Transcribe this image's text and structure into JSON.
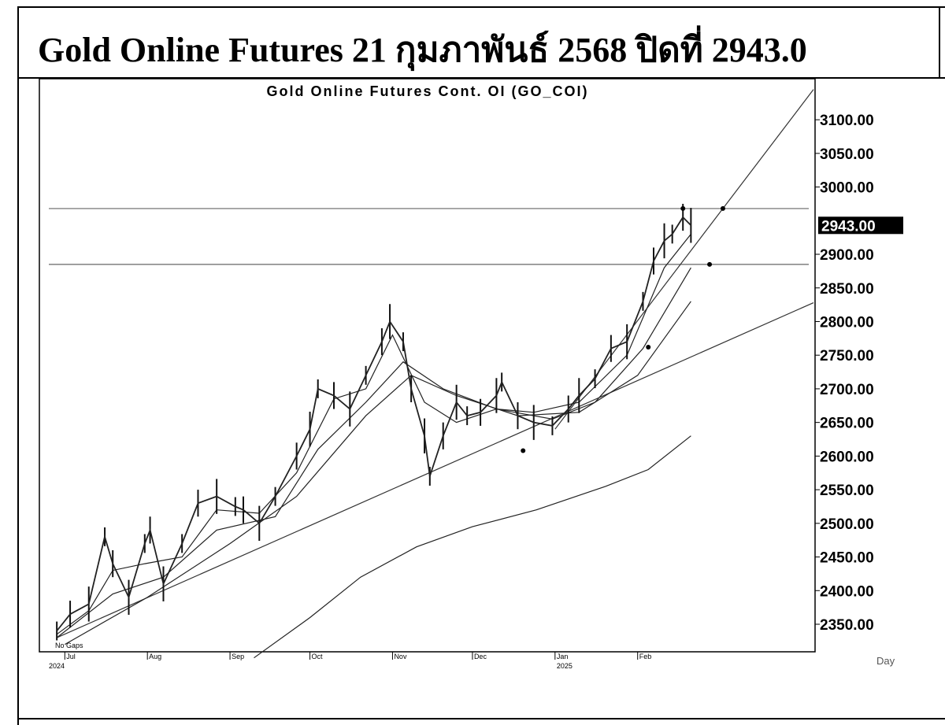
{
  "header": {
    "title": "Gold Online Futures 21 กุมภาพันธ์ 2568 ปิดที่ 2943.0"
  },
  "chart_data": {
    "type": "line",
    "title": "Gold Online Futures Cont. OI (GO_COI)",
    "xlabel": "",
    "ylabel": "",
    "ylim": [
      2300,
      3140
    ],
    "y_ticks": [
      "3100.00",
      "3050.00",
      "3000.00",
      "2900.00",
      "2850.00",
      "2800.00",
      "2750.00",
      "2700.00",
      "2650.00",
      "2600.00",
      "2550.00",
      "2500.00",
      "2450.00",
      "2400.00",
      "2350.00"
    ],
    "last_price_label": "2943.00",
    "last_price": 2943.0,
    "period_label": "Day",
    "gaps_label": "No Gaps",
    "x_months": [
      "Jul",
      "Aug",
      "Sep",
      "Oct",
      "Nov",
      "Dec",
      "Jan",
      "Feb"
    ],
    "x_years": [
      "2024",
      "2025"
    ],
    "horizontal_levels": [
      2968,
      2885
    ],
    "price_close": [
      {
        "d": "2024-06-28",
        "v": 2340
      },
      {
        "d": "2024-07-03",
        "v": 2365
      },
      {
        "d": "2024-07-10",
        "v": 2380
      },
      {
        "d": "2024-07-16",
        "v": 2480
      },
      {
        "d": "2024-07-19",
        "v": 2440
      },
      {
        "d": "2024-07-25",
        "v": 2390
      },
      {
        "d": "2024-07-31",
        "v": 2470
      },
      {
        "d": "2024-08-02",
        "v": 2490
      },
      {
        "d": "2024-08-07",
        "v": 2410
      },
      {
        "d": "2024-08-14",
        "v": 2470
      },
      {
        "d": "2024-08-20",
        "v": 2530
      },
      {
        "d": "2024-08-27",
        "v": 2540
      },
      {
        "d": "2024-09-03",
        "v": 2525
      },
      {
        "d": "2024-09-06",
        "v": 2520
      },
      {
        "d": "2024-09-12",
        "v": 2500
      },
      {
        "d": "2024-09-18",
        "v": 2540
      },
      {
        "d": "2024-09-26",
        "v": 2600
      },
      {
        "d": "2024-10-01",
        "v": 2640
      },
      {
        "d": "2024-10-04",
        "v": 2700
      },
      {
        "d": "2024-10-10",
        "v": 2690
      },
      {
        "d": "2024-10-16",
        "v": 2670
      },
      {
        "d": "2024-10-22",
        "v": 2720
      },
      {
        "d": "2024-10-28",
        "v": 2770
      },
      {
        "d": "2024-10-31",
        "v": 2800
      },
      {
        "d": "2024-11-05",
        "v": 2770
      },
      {
        "d": "2024-11-08",
        "v": 2700
      },
      {
        "d": "2024-11-13",
        "v": 2630
      },
      {
        "d": "2024-11-15",
        "v": 2570
      },
      {
        "d": "2024-11-20",
        "v": 2630
      },
      {
        "d": "2024-11-25",
        "v": 2680
      },
      {
        "d": "2024-11-29",
        "v": 2660
      },
      {
        "d": "2024-12-04",
        "v": 2665
      },
      {
        "d": "2024-12-10",
        "v": 2690
      },
      {
        "d": "2024-12-12",
        "v": 2710
      },
      {
        "d": "2024-12-18",
        "v": 2660
      },
      {
        "d": "2024-12-24",
        "v": 2650
      },
      {
        "d": "2024-12-31",
        "v": 2645
      },
      {
        "d": "2025-01-06",
        "v": 2670
      },
      {
        "d": "2025-01-10",
        "v": 2690
      },
      {
        "d": "2025-01-16",
        "v": 2715
      },
      {
        "d": "2025-01-22",
        "v": 2760
      },
      {
        "d": "2025-01-28",
        "v": 2770
      },
      {
        "d": "2025-02-03",
        "v": 2830
      },
      {
        "d": "2025-02-07",
        "v": 2890
      },
      {
        "d": "2025-02-11",
        "v": 2920
      },
      {
        "d": "2025-02-14",
        "v": 2930
      },
      {
        "d": "2025-02-18",
        "v": 2955
      },
      {
        "d": "2025-02-21",
        "v": 2943
      }
    ],
    "ma_fast": [
      {
        "d": "2024-06-28",
        "v": 2335
      },
      {
        "d": "2024-07-10",
        "v": 2370
      },
      {
        "d": "2024-07-19",
        "v": 2430
      },
      {
        "d": "2024-07-31",
        "v": 2440
      },
      {
        "d": "2024-08-14",
        "v": 2450
      },
      {
        "d": "2024-08-27",
        "v": 2520
      },
      {
        "d": "2024-09-12",
        "v": 2515
      },
      {
        "d": "2024-09-26",
        "v": 2575
      },
      {
        "d": "2024-10-10",
        "v": 2685
      },
      {
        "d": "2024-10-22",
        "v": 2700
      },
      {
        "d": "2024-11-01",
        "v": 2780
      },
      {
        "d": "2024-11-13",
        "v": 2680
      },
      {
        "d": "2024-11-25",
        "v": 2650
      },
      {
        "d": "2024-12-10",
        "v": 2670
      },
      {
        "d": "2024-12-24",
        "v": 2665
      },
      {
        "d": "2025-01-10",
        "v": 2680
      },
      {
        "d": "2025-01-28",
        "v": 2750
      },
      {
        "d": "2025-02-11",
        "v": 2880
      },
      {
        "d": "2025-02-21",
        "v": 2930
      }
    ],
    "ma_mid": [
      {
        "d": "2024-06-28",
        "v": 2330
      },
      {
        "d": "2024-07-19",
        "v": 2395
      },
      {
        "d": "2024-08-07",
        "v": 2420
      },
      {
        "d": "2024-08-27",
        "v": 2490
      },
      {
        "d": "2024-09-18",
        "v": 2510
      },
      {
        "d": "2024-10-04",
        "v": 2610
      },
      {
        "d": "2024-10-22",
        "v": 2680
      },
      {
        "d": "2024-11-05",
        "v": 2740
      },
      {
        "d": "2024-11-20",
        "v": 2700
      },
      {
        "d": "2024-12-10",
        "v": 2670
      },
      {
        "d": "2024-12-31",
        "v": 2655
      },
      {
        "d": "2025-01-16",
        "v": 2680
      },
      {
        "d": "2025-02-03",
        "v": 2760
      },
      {
        "d": "2025-02-21",
        "v": 2880
      }
    ],
    "ma_slow": [
      {
        "d": "2024-07-01",
        "v": 2320
      },
      {
        "d": "2024-08-01",
        "v": 2390
      },
      {
        "d": "2024-09-01",
        "v": 2470
      },
      {
        "d": "2024-09-26",
        "v": 2540
      },
      {
        "d": "2024-10-22",
        "v": 2660
      },
      {
        "d": "2024-11-08",
        "v": 2720
      },
      {
        "d": "2024-11-25",
        "v": 2690
      },
      {
        "d": "2024-12-18",
        "v": 2660
      },
      {
        "d": "2025-01-10",
        "v": 2665
      },
      {
        "d": "2025-02-01",
        "v": 2720
      },
      {
        "d": "2025-02-21",
        "v": 2830
      }
    ],
    "ma_long": [
      {
        "d": "2024-09-10",
        "v": 2300
      },
      {
        "d": "2024-10-01",
        "v": 2360
      },
      {
        "d": "2024-10-20",
        "v": 2420
      },
      {
        "d": "2024-11-10",
        "v": 2465
      },
      {
        "d": "2024-12-01",
        "v": 2495
      },
      {
        "d": "2024-12-25",
        "v": 2520
      },
      {
        "d": "2025-01-20",
        "v": 2555
      },
      {
        "d": "2025-02-05",
        "v": 2580
      },
      {
        "d": "2025-02-21",
        "v": 2630
      }
    ],
    "trendlines": [
      {
        "from": {
          "d": "2024-06-28",
          "v": 2330
        },
        "to": {
          "d": "2025-04-08",
          "v": 2828
        }
      },
      {
        "from": {
          "d": "2025-01-01",
          "v": 2640
        },
        "to": {
          "d": "2025-04-08",
          "v": 3145
        }
      }
    ],
    "markers": [
      {
        "d": "2024-12-20",
        "v": 2608
      },
      {
        "d": "2025-02-05",
        "v": 2762
      },
      {
        "d": "2025-02-18",
        "v": 2968
      },
      {
        "d": "2025-03-05",
        "v": 2968
      },
      {
        "d": "2025-02-28",
        "v": 2885
      }
    ]
  }
}
